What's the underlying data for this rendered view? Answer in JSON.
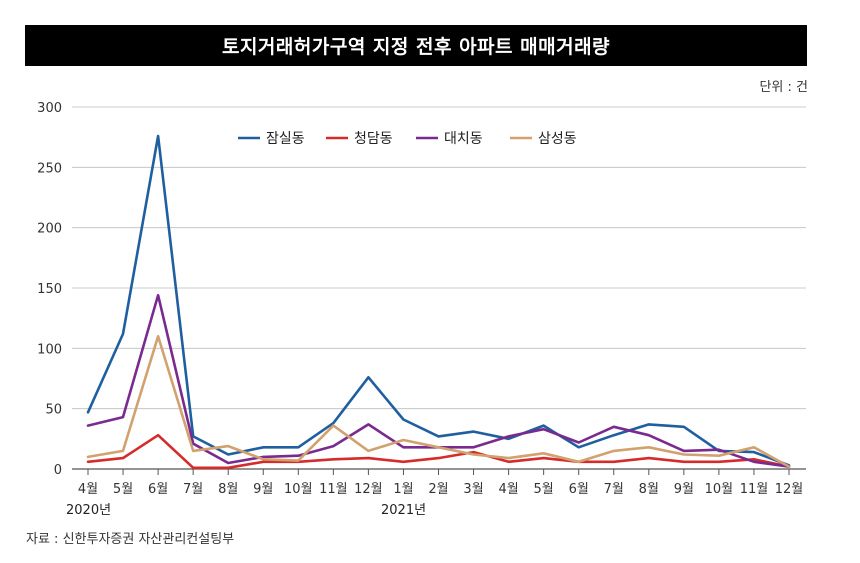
{
  "title": "토지거래허가구역 지정 전후 아파트 매매거래량",
  "unit_label": "단위 : 건",
  "source": "자료 : 신한투자증권 자산관리컨설팅부",
  "year_labels": [
    "2020년",
    "2021년"
  ],
  "chart_data": {
    "type": "line",
    "title": "토지거래허가구역 지정 전후 아파트 매매거래량",
    "xlabel": "",
    "ylabel": "",
    "ylim": [
      0,
      300
    ],
    "yticks": [
      0,
      50,
      100,
      150,
      200,
      250,
      300
    ],
    "grid": true,
    "legend_position": "top-center",
    "categories": [
      "4월",
      "5월",
      "6월",
      "7월",
      "8월",
      "9월",
      "10월",
      "11월",
      "12월",
      "1월",
      "2월",
      "3월",
      "4월",
      "5월",
      "6월",
      "7월",
      "8월",
      "9월",
      "10월",
      "11월",
      "12월"
    ],
    "series": [
      {
        "name": "잠실동",
        "color": "#1f5fa0",
        "values": [
          47,
          112,
          276,
          27,
          12,
          18,
          18,
          38,
          76,
          41,
          27,
          31,
          25,
          36,
          18,
          28,
          37,
          35,
          15,
          14,
          3
        ]
      },
      {
        "name": "청담동",
        "color": "#d62b2b",
        "values": [
          6,
          9,
          28,
          1,
          1,
          6,
          6,
          8,
          9,
          6,
          9,
          14,
          6,
          9,
          6,
          6,
          9,
          6,
          6,
          8,
          2
        ]
      },
      {
        "name": "대치동",
        "color": "#7a2a8f",
        "values": [
          36,
          43,
          144,
          21,
          5,
          10,
          11,
          19,
          37,
          18,
          18,
          18,
          27,
          33,
          22,
          35,
          28,
          15,
          16,
          6,
          2
        ]
      },
      {
        "name": "삼성동",
        "color": "#d1a270",
        "values": [
          10,
          15,
          110,
          15,
          19,
          8,
          7,
          36,
          15,
          24,
          18,
          12,
          9,
          13,
          6,
          15,
          18,
          12,
          11,
          18,
          2
        ]
      }
    ]
  }
}
